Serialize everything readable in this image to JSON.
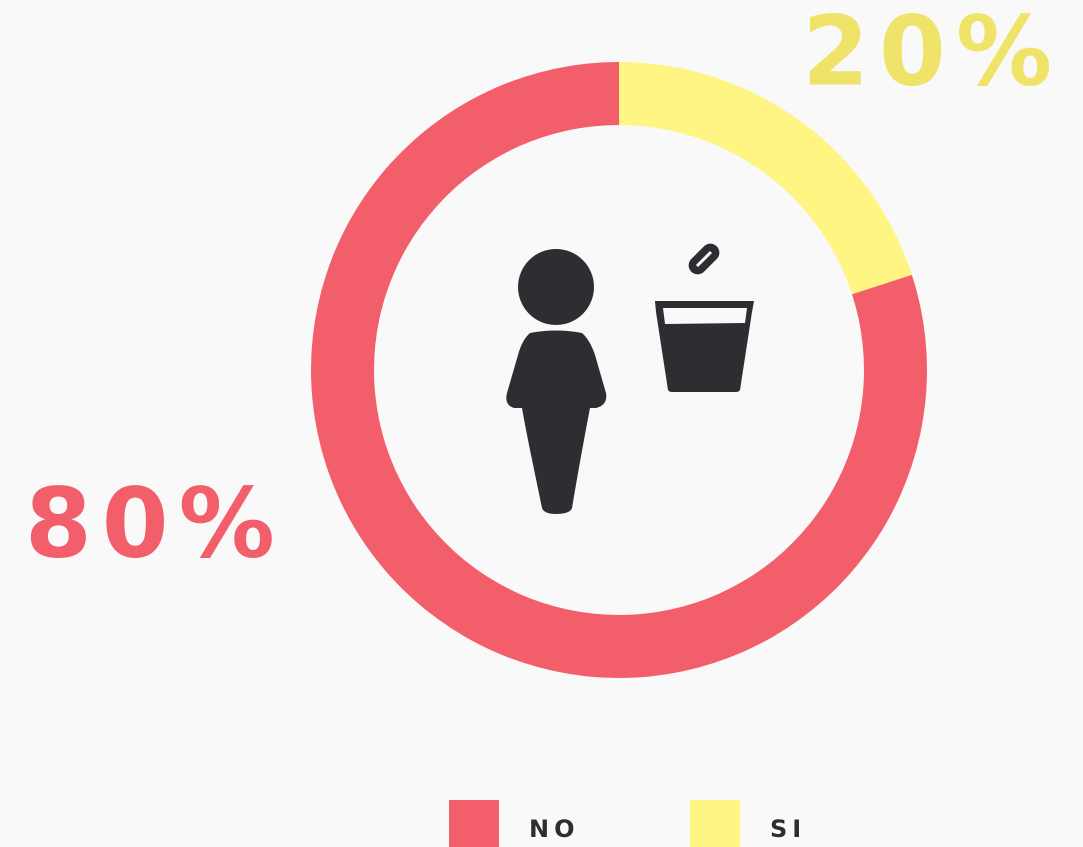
{
  "chart_data": {
    "type": "donut",
    "categories": [
      "NO",
      "SI"
    ],
    "values": [
      80,
      20
    ],
    "value_labels": [
      "80%",
      "20%"
    ],
    "colors": [
      "#f25f6b",
      "#fff582"
    ],
    "label_colors": [
      "#f25f6b",
      "#efe36a"
    ],
    "legend": "bottom"
  }
}
